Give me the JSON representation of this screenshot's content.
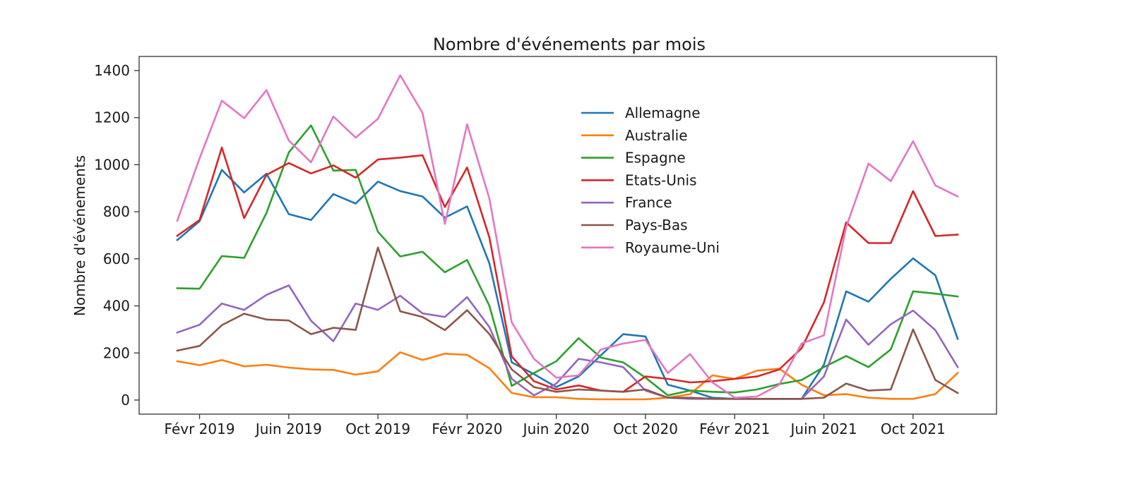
{
  "chart_data": {
    "type": "line",
    "title": "Nombre d'événements par mois",
    "xlabel": "",
    "ylabel": "Nombre d'événements",
    "ylim": [
      -60,
      1460
    ],
    "yticks": [
      0,
      200,
      400,
      600,
      800,
      1000,
      1200,
      1400
    ],
    "x_tick_labels": [
      {
        "month_index": 1,
        "label": "Févr 2019"
      },
      {
        "month_index": 5,
        "label": "Juin 2019"
      },
      {
        "month_index": 9,
        "label": "Oct 2019"
      },
      {
        "month_index": 13,
        "label": "Févr 2020"
      },
      {
        "month_index": 17,
        "label": "Juin 2020"
      },
      {
        "month_index": 21,
        "label": "Oct 2020"
      },
      {
        "month_index": 25,
        "label": "Févr 2021"
      },
      {
        "month_index": 29,
        "label": "Juin 2021"
      },
      {
        "month_index": 33,
        "label": "Oct 2021"
      }
    ],
    "x": [
      "2019-01",
      "2019-02",
      "2019-03",
      "2019-04",
      "2019-05",
      "2019-06",
      "2019-07",
      "2019-08",
      "2019-09",
      "2019-10",
      "2019-11",
      "2019-12",
      "2020-01",
      "2020-02",
      "2020-03",
      "2020-04",
      "2020-05",
      "2020-06",
      "2020-07",
      "2020-08",
      "2020-09",
      "2020-10",
      "2020-11",
      "2020-12",
      "2021-01",
      "2021-02",
      "2021-03",
      "2021-04",
      "2021-05",
      "2021-06",
      "2021-07",
      "2021-08",
      "2021-09",
      "2021-10",
      "2021-11",
      "2021-12"
    ],
    "legend_position": "upper center",
    "grid": false,
    "series": [
      {
        "name": "Allemagne",
        "color": "#1f77b4",
        "values": [
          680,
          760,
          978,
          882,
          962,
          790,
          765,
          875,
          835,
          928,
          888,
          865,
          775,
          823,
          580,
          160,
          110,
          55,
          100,
          190,
          280,
          270,
          65,
          40,
          10,
          5,
          5,
          5,
          5,
          150,
          462,
          418,
          515,
          602,
          530,
          260
        ]
      },
      {
        "name": "Australie",
        "color": "#ff7f0e",
        "values": [
          165,
          148,
          170,
          143,
          150,
          138,
          130,
          128,
          108,
          122,
          203,
          170,
          197,
          192,
          135,
          30,
          12,
          12,
          5,
          3,
          3,
          3,
          10,
          25,
          105,
          90,
          125,
          133,
          65,
          20,
          25,
          10,
          5,
          5,
          25,
          115
        ]
      },
      {
        "name": "Espagne",
        "color": "#2ca02c",
        "values": [
          475,
          473,
          612,
          604,
          795,
          1052,
          1167,
          975,
          978,
          715,
          610,
          630,
          543,
          595,
          400,
          60,
          115,
          165,
          263,
          180,
          160,
          95,
          20,
          40,
          35,
          32,
          45,
          68,
          85,
          140,
          187,
          140,
          215,
          462,
          452,
          440
        ]
      },
      {
        "name": "Etats-Unis",
        "color": "#d62728",
        "values": [
          698,
          765,
          1073,
          773,
          957,
          1007,
          963,
          997,
          945,
          1022,
          1030,
          1040,
          820,
          988,
          690,
          185,
          80,
          45,
          62,
          40,
          35,
          100,
          90,
          75,
          80,
          90,
          100,
          130,
          220,
          415,
          755,
          667,
          667,
          888,
          697,
          703
        ]
      },
      {
        "name": "France",
        "color": "#9467bd",
        "values": [
          287,
          320,
          410,
          383,
          447,
          487,
          337,
          250,
          410,
          383,
          443,
          368,
          353,
          437,
          310,
          90,
          20,
          70,
          175,
          160,
          140,
          40,
          10,
          5,
          5,
          5,
          5,
          5,
          5,
          100,
          342,
          235,
          322,
          380,
          297,
          140
        ]
      },
      {
        "name": "Pays-Bas",
        "color": "#8c564b",
        "values": [
          210,
          230,
          318,
          367,
          342,
          338,
          280,
          307,
          298,
          648,
          377,
          353,
          297,
          382,
          280,
          130,
          55,
          35,
          45,
          40,
          35,
          45,
          10,
          10,
          5,
          5,
          5,
          5,
          5,
          10,
          70,
          40,
          45,
          300,
          85,
          30
        ]
      },
      {
        "name": "Royaume-Uni",
        "color": "#e377c2",
        "values": [
          762,
          1027,
          1272,
          1198,
          1317,
          1103,
          1010,
          1205,
          1115,
          1195,
          1380,
          1220,
          748,
          1172,
          855,
          330,
          175,
          95,
          105,
          215,
          240,
          255,
          115,
          195,
          75,
          10,
          15,
          65,
          240,
          275,
          735,
          1005,
          930,
          1100,
          912,
          865
        ]
      }
    ]
  }
}
